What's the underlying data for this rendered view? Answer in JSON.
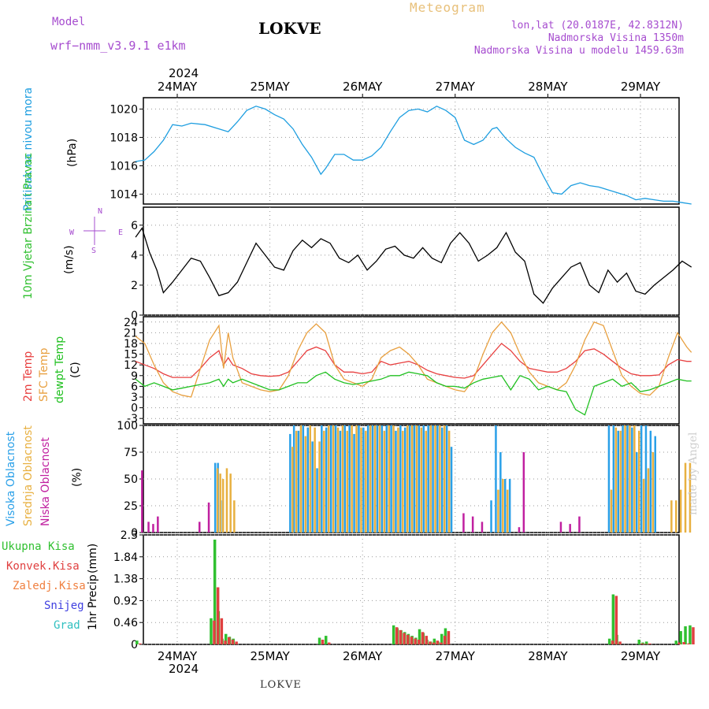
{
  "header": {
    "model_label": "Model",
    "model_name": "wrf−nmm_v3.9.1  e1km",
    "station": "LOKVE",
    "app_title": "Meteogram",
    "coords": "lon,lat (20.0187E, 42.8312N)",
    "elevation": "Nadmorska Visina 1350m",
    "model_elevation": "Nadmorska Visina u modelu 1459.63m",
    "footer_station": "LOKVE",
    "watermark": "made by Angel"
  },
  "colors": {
    "pressure": "#1e9ee0",
    "t2m": "#e84040",
    "sfc": "#e8a040",
    "dewpt": "#20c020",
    "high_cloud": "#2aa0e8",
    "mid_cloud": "#e8b040",
    "low_cloud": "#c020a0",
    "total_precip": "#30c030",
    "conv_precip": "#e04040",
    "frozen_precip": "#f08040",
    "snow": "#4040e0",
    "hail": "#30c0c0",
    "magenta_label": "#a64ccf"
  },
  "time_axis": {
    "year": "2024",
    "days": [
      "24MAY",
      "25MAY",
      "26MAY",
      "27MAY",
      "28MAY",
      "29MAY"
    ]
  },
  "chart_data": [
    {
      "id": "pressure",
      "type": "line",
      "ylabel": "Pritisak na nivou mora",
      "unit": "(hPa)",
      "ylim": [
        1013.3,
        1020.8
      ],
      "yticks": [
        1014,
        1016,
        1018,
        1020
      ],
      "x_days": [
        -0.45,
        -0.35,
        -0.25,
        -0.15,
        -0.05,
        0.05,
        0.15,
        0.3,
        0.45,
        0.55,
        0.65,
        0.75,
        0.85,
        0.95,
        1.05,
        1.15,
        1.25,
        1.35,
        1.45,
        1.55,
        1.6,
        1.7,
        1.8,
        1.9,
        2.0,
        2.1,
        2.2,
        2.3,
        2.4,
        2.5,
        2.6,
        2.7,
        2.8,
        2.9,
        3.0,
        3.1,
        3.2,
        3.3,
        3.4,
        3.45,
        3.55,
        3.65,
        3.75,
        3.85,
        3.95,
        4.05,
        4.15,
        4.25,
        4.35,
        4.45,
        4.55,
        4.65,
        4.75,
        4.85,
        4.95,
        5.05,
        5.15,
        5.25,
        5.35,
        5.45,
        5.55
      ],
      "values": [
        1016.3,
        1016.4,
        1017.0,
        1017.8,
        1018.9,
        1018.8,
        1019.0,
        1018.9,
        1018.6,
        1018.4,
        1019.1,
        1019.9,
        1020.2,
        1020.0,
        1019.6,
        1019.3,
        1018.6,
        1017.5,
        1016.6,
        1015.4,
        1015.8,
        1016.8,
        1016.8,
        1016.4,
        1016.4,
        1016.7,
        1017.3,
        1018.4,
        1019.4,
        1019.9,
        1020.0,
        1019.8,
        1020.2,
        1019.9,
        1019.4,
        1017.8,
        1017.5,
        1017.8,
        1018.6,
        1018.7,
        1017.9,
        1017.3,
        1016.9,
        1016.6,
        1015.3,
        1014.1,
        1014.0,
        1014.6,
        1014.8,
        1014.6,
        1014.5,
        1014.3,
        1014.1,
        1013.9,
        1013.6,
        1013.7,
        1013.6,
        1013.5,
        1013.5,
        1013.4,
        1013.3
      ]
    },
    {
      "id": "wind",
      "type": "line",
      "ylabel": "10m Vjetar Brzina i Pravac",
      "unit": "(m/s)",
      "ylim": [
        0,
        7.2
      ],
      "yticks": [
        0,
        2,
        4,
        6
      ],
      "compass": [
        "N",
        "W",
        "E",
        "S"
      ],
      "x_days": [
        -0.45,
        -0.38,
        -0.3,
        -0.22,
        -0.15,
        -0.05,
        0.05,
        0.15,
        0.25,
        0.35,
        0.45,
        0.55,
        0.65,
        0.75,
        0.85,
        0.95,
        1.05,
        1.15,
        1.25,
        1.35,
        1.45,
        1.55,
        1.65,
        1.75,
        1.85,
        1.95,
        2.05,
        2.15,
        2.25,
        2.35,
        2.45,
        2.55,
        2.65,
        2.75,
        2.85,
        2.95,
        3.05,
        3.15,
        3.25,
        3.35,
        3.45,
        3.55,
        3.65,
        3.75,
        3.85,
        3.95,
        4.05,
        4.15,
        4.25,
        4.35,
        4.45,
        4.55,
        4.65,
        4.75,
        4.85,
        4.95,
        5.05,
        5.15,
        5.25,
        5.35,
        5.45,
        5.55
      ],
      "values": [
        5.2,
        5.8,
        4.2,
        3.0,
        1.5,
        2.2,
        3.0,
        3.8,
        3.6,
        2.5,
        1.3,
        1.5,
        2.2,
        3.5,
        4.8,
        4.0,
        3.2,
        3.0,
        4.3,
        5.0,
        4.5,
        5.1,
        4.8,
        3.8,
        3.5,
        4.0,
        3.0,
        3.6,
        4.4,
        4.6,
        4.0,
        3.8,
        4.5,
        3.8,
        3.5,
        4.8,
        5.5,
        4.8,
        3.6,
        4.0,
        4.5,
        5.5,
        4.2,
        3.6,
        1.4,
        0.8,
        1.8,
        2.5,
        3.2,
        3.5,
        2.0,
        1.5,
        3.0,
        2.2,
        2.8,
        1.6,
        1.4,
        2.0,
        2.5,
        3.0,
        3.6,
        3.2
      ]
    },
    {
      "id": "temperature",
      "type": "line",
      "ylabel_lines": [
        "2m Temp",
        "SFC Temp",
        "dewpt Temp"
      ],
      "unit": "(C)",
      "ylim": [
        -4.5,
        25.5
      ],
      "yticks": [
        -3,
        0,
        3,
        6,
        9,
        12,
        15,
        18,
        21,
        24
      ],
      "x_days": [
        -0.45,
        -0.35,
        -0.25,
        -0.15,
        -0.05,
        0.05,
        0.15,
        0.25,
        0.35,
        0.45,
        0.5,
        0.55,
        0.6,
        0.7,
        0.8,
        0.9,
        1.0,
        1.1,
        1.2,
        1.3,
        1.4,
        1.5,
        1.6,
        1.7,
        1.8,
        1.9,
        2.0,
        2.1,
        2.2,
        2.3,
        2.4,
        2.5,
        2.6,
        2.7,
        2.8,
        2.9,
        3.0,
        3.1,
        3.2,
        3.3,
        3.4,
        3.5,
        3.6,
        3.7,
        3.8,
        3.9,
        4.0,
        4.1,
        4.2,
        4.3,
        4.4,
        4.5,
        4.6,
        4.7,
        4.8,
        4.9,
        5.0,
        5.1,
        5.2,
        5.3,
        5.4,
        5.5,
        5.55
      ],
      "series": [
        {
          "name": "2m Temp",
          "color": "#e84040",
          "values": [
            13,
            12,
            11,
            9.5,
            8.5,
            8.5,
            8.5,
            11,
            14,
            16,
            12,
            14,
            12,
            11,
            9.5,
            9.0,
            8.8,
            9.0,
            10,
            13,
            16,
            17,
            16,
            12,
            10,
            10,
            9.5,
            10,
            13,
            12,
            12.5,
            13,
            12,
            10.5,
            9.5,
            9.0,
            8.5,
            8.3,
            9.0,
            12,
            15,
            18,
            16,
            13,
            11,
            10.5,
            10,
            10,
            11,
            13,
            16,
            16.5,
            15,
            13,
            11,
            9.5,
            9.0,
            9.0,
            9.2,
            12,
            13.5,
            13,
            13
          ]
        },
        {
          "name": "SFC Temp",
          "color": "#e8a040",
          "values": [
            20,
            18,
            12,
            7,
            4.5,
            3.5,
            3,
            11,
            19,
            23,
            11,
            21,
            14,
            7,
            6,
            5,
            4.5,
            5,
            9,
            16,
            21,
            23.5,
            21,
            12,
            8,
            7,
            6,
            8,
            14,
            16,
            17,
            15,
            12,
            8,
            7,
            6,
            5,
            4.5,
            8,
            15,
            21,
            24,
            21,
            15,
            10,
            7,
            6,
            5,
            7,
            12,
            19,
            24,
            23,
            16,
            9,
            6,
            4,
            3.5,
            6,
            14,
            21,
            17,
            15.5
          ]
        },
        {
          "name": "dewpt Temp",
          "color": "#20c020",
          "values": [
            8,
            6,
            7,
            6,
            5,
            5.5,
            6,
            6.5,
            7,
            8,
            6,
            8,
            7,
            8,
            7,
            6,
            5,
            5,
            6,
            7,
            7,
            9,
            10,
            8,
            7,
            6.5,
            7,
            7.5,
            8,
            9,
            9,
            10,
            9.5,
            9,
            7,
            6,
            6,
            5.5,
            7,
            8,
            8.5,
            9,
            5,
            9,
            8,
            5,
            6,
            5,
            4.5,
            -0.5,
            -2,
            6,
            7,
            8,
            6,
            7,
            4.5,
            5,
            6,
            7,
            8,
            7.5,
            7.5
          ]
        }
      ]
    },
    {
      "id": "clouds",
      "type": "bar",
      "ylabel_lines": [
        "Visoka Oblacnost",
        "Srednja Oblacnost",
        "Niska Oblacnost"
      ],
      "unit": "(%)",
      "ylim": [
        0,
        100
      ],
      "yticks": [
        0,
        25,
        50,
        75,
        100
      ],
      "x_days": [
        -0.42,
        -0.35,
        -0.3,
        -0.25,
        -0.1,
        0.0,
        0.1,
        0.2,
        0.3,
        0.42,
        0.45,
        0.48,
        0.52,
        0.56,
        0.6,
        0.64,
        0.68,
        0.75,
        0.85,
        0.95,
        1.05,
        1.15,
        1.23,
        1.27,
        1.32,
        1.37,
        1.42,
        1.47,
        1.52,
        1.57,
        1.62,
        1.67,
        1.72,
        1.77,
        1.82,
        1.87,
        1.92,
        1.97,
        2.02,
        2.07,
        2.12,
        2.17,
        2.22,
        2.27,
        2.32,
        2.37,
        2.42,
        2.47,
        2.52,
        2.57,
        2.62,
        2.67,
        2.72,
        2.77,
        2.82,
        2.87,
        2.92,
        2.97,
        3.05,
        3.15,
        3.25,
        3.35,
        3.4,
        3.45,
        3.5,
        3.55,
        3.6,
        3.65,
        3.7,
        3.8,
        3.9,
        4.0,
        4.1,
        4.2,
        4.3,
        4.4,
        4.5,
        4.6,
        4.67,
        4.72,
        4.77,
        4.82,
        4.87,
        4.92,
        4.97,
        5.02,
        5.07,
        5.12,
        5.17,
        5.22,
        5.27,
        5.32,
        5.37,
        5.42,
        5.47,
        5.52
      ],
      "series": [
        {
          "name": "Visoka Oblacnost",
          "color": "#2aa0e8",
          "values": [
            0,
            0,
            0,
            0,
            0,
            0,
            0,
            0,
            0,
            65,
            65,
            30,
            0,
            0,
            0,
            0,
            0,
            0,
            0,
            0,
            0,
            0,
            92,
            100,
            95,
            100,
            98,
            85,
            60,
            100,
            98,
            100,
            100,
            95,
            100,
            100,
            92,
            100,
            98,
            100,
            100,
            100,
            100,
            100,
            100,
            95,
            100,
            98,
            100,
            100,
            100,
            100,
            100,
            100,
            100,
            98,
            100,
            80,
            0,
            0,
            0,
            0,
            30,
            100,
            75,
            50,
            50,
            0,
            0,
            0,
            0,
            0,
            0,
            0,
            0,
            0,
            0,
            0,
            100,
            100,
            95,
            100,
            100,
            98,
            75,
            100,
            100,
            95,
            90,
            0,
            0,
            0,
            0,
            0,
            0,
            0
          ]
        },
        {
          "name": "Srednja Oblacnost",
          "color": "#e8b040",
          "values": [
            0,
            0,
            0,
            0,
            0,
            0,
            0,
            0,
            0,
            60,
            55,
            50,
            60,
            55,
            30,
            0,
            0,
            0,
            0,
            0,
            0,
            0,
            80,
            95,
            100,
            90,
            100,
            98,
            85,
            95,
            100,
            100,
            98,
            100,
            95,
            100,
            100,
            98,
            95,
            100,
            100,
            100,
            95,
            100,
            100,
            98,
            95,
            100,
            100,
            100,
            98,
            95,
            100,
            100,
            100,
            100,
            95,
            0,
            0,
            0,
            0,
            0,
            0,
            40,
            50,
            40,
            0,
            0,
            0,
            0,
            0,
            0,
            0,
            0,
            0,
            0,
            0,
            0,
            40,
            98,
            95,
            100,
            100,
            100,
            95,
            50,
            60,
            75,
            0,
            0,
            0,
            30,
            30,
            40,
            65,
            65
          ]
        },
        {
          "name": "Niska Oblacnost",
          "color": "#c020a0",
          "values": [
            58,
            10,
            8,
            15,
            0,
            0,
            0,
            10,
            28,
            0,
            0,
            0,
            0,
            0,
            0,
            0,
            0,
            0,
            0,
            0,
            0,
            0,
            0,
            0,
            0,
            0,
            0,
            0,
            0,
            0,
            0,
            0,
            0,
            0,
            0,
            0,
            0,
            0,
            0,
            0,
            0,
            0,
            0,
            0,
            0,
            0,
            0,
            0,
            0,
            0,
            0,
            0,
            0,
            0,
            0,
            0,
            0,
            0,
            18,
            15,
            10,
            0,
            0,
            0,
            0,
            0,
            0,
            5,
            75,
            0,
            0,
            0,
            10,
            8,
            15,
            0,
            0,
            0,
            0,
            0,
            0,
            0,
            0,
            0,
            0,
            0,
            0,
            0,
            0,
            0,
            0,
            0,
            0,
            0,
            0,
            0
          ]
        }
      ]
    },
    {
      "id": "precip",
      "type": "bar",
      "ylabel": "1hr Precip",
      "unit": "(mm)",
      "ylim": [
        0,
        2.3
      ],
      "yticks": [
        0,
        0.46,
        0.92,
        1.38,
        1.84,
        2.3
      ],
      "legend": [
        "Ukupna Kisa",
        "Konvek.Kisa",
        "Zaledj.Kisa",
        "Snijeg",
        "Grad"
      ],
      "x_days": [
        -0.42,
        0.38,
        0.42,
        0.46,
        0.5,
        0.54,
        0.58,
        0.62,
        1.55,
        1.62,
        2.35,
        2.39,
        2.43,
        2.47,
        2.51,
        2.55,
        2.59,
        2.63,
        2.67,
        2.71,
        2.75,
        2.79,
        2.83,
        2.87,
        2.91,
        4.68,
        4.72,
        4.76,
        5.0,
        5.04,
        5.08,
        5.4,
        5.45,
        5.5,
        5.55
      ],
      "series": [
        {
          "name": "Ukupna Kisa",
          "color": "#30c030",
          "values": [
            0.08,
            0.55,
            2.2,
            0.7,
            0.12,
            0.22,
            0.16,
            0.12,
            0.14,
            0.18,
            0.4,
            0.34,
            0.3,
            0.26,
            0.22,
            0.18,
            0.14,
            0.32,
            0.24,
            0.1,
            0.06,
            0.12,
            0.06,
            0.22,
            0.34,
            0.12,
            1.05,
            0.2,
            0.1,
            0.04,
            0.06,
            0.08,
            0.28,
            0.38,
            0.4
          ]
        },
        {
          "name": "Konvek.Kisa",
          "color": "#e04040",
          "values": [
            0.02,
            0.5,
            1.2,
            0.55,
            0.08,
            0.15,
            0.1,
            0.06,
            0.1,
            0.04,
            0.36,
            0.3,
            0.24,
            0.2,
            0.16,
            0.12,
            0.1,
            0.26,
            0.18,
            0.06,
            0.04,
            0.08,
            0.04,
            0.18,
            0.28,
            0.08,
            1.02,
            0.06,
            0.02,
            0.01,
            0.02,
            0.04,
            0.05,
            0.02,
            0.36
          ]
        }
      ]
    }
  ]
}
